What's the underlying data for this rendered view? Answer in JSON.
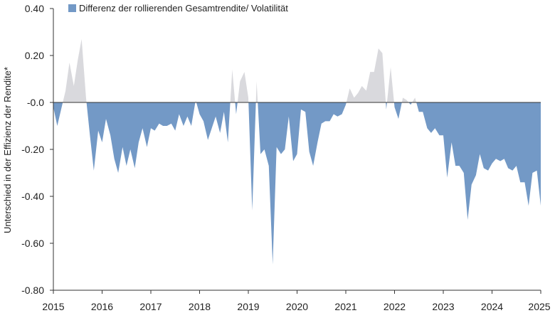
{
  "chart_data": {
    "type": "area",
    "title": "",
    "xlabel": "",
    "ylabel": "Unterschied in der Effizienz der Rendite*",
    "ylim": [
      -0.8,
      0.4
    ],
    "xlim": [
      2015.0,
      2025.0
    ],
    "y_ticks": [
      "0.40",
      "0.20",
      "-0.0",
      "-0.20",
      "-0.40",
      "-0.60",
      "-0.80"
    ],
    "y_tick_values": [
      0.4,
      0.2,
      0.0,
      -0.2,
      -0.4,
      -0.6,
      -0.8
    ],
    "x_ticks": [
      "2015",
      "2016",
      "2017",
      "2018",
      "2019",
      "2020",
      "2021",
      "2022",
      "2023",
      "2024",
      "2025"
    ],
    "x_tick_values": [
      2015,
      2016,
      2017,
      2018,
      2019,
      2020,
      2021,
      2022,
      2023,
      2024,
      2025
    ],
    "grid": false,
    "legend_position": "top-left",
    "colors": {
      "negative": "#7399c6",
      "positive": "#d9d9dd",
      "axis": "#333333"
    },
    "series": [
      {
        "name": "Differenz der rollierenden Gesamtrendite/ Volatilität",
        "x": [
          2015.0,
          2015.08,
          2015.17,
          2015.25,
          2015.33,
          2015.42,
          2015.5,
          2015.58,
          2015.67,
          2015.75,
          2015.83,
          2015.92,
          2016.0,
          2016.08,
          2016.17,
          2016.25,
          2016.33,
          2016.42,
          2016.5,
          2016.58,
          2016.67,
          2016.75,
          2016.83,
          2016.92,
          2017.0,
          2017.08,
          2017.17,
          2017.25,
          2017.33,
          2017.42,
          2017.5,
          2017.58,
          2017.67,
          2017.75,
          2017.83,
          2017.92,
          2018.0,
          2018.08,
          2018.17,
          2018.25,
          2018.33,
          2018.42,
          2018.5,
          2018.58,
          2018.67,
          2018.75,
          2018.83,
          2018.92,
          2019.0,
          2019.08,
          2019.17,
          2019.25,
          2019.33,
          2019.42,
          2019.5,
          2019.58,
          2019.67,
          2019.75,
          2019.83,
          2019.92,
          2020.0,
          2020.08,
          2020.17,
          2020.25,
          2020.33,
          2020.42,
          2020.5,
          2020.58,
          2020.67,
          2020.75,
          2020.83,
          2020.92,
          2021.0,
          2021.08,
          2021.17,
          2021.25,
          2021.33,
          2021.42,
          2021.5,
          2021.58,
          2021.67,
          2021.75,
          2021.83,
          2021.92,
          2022.0,
          2022.08,
          2022.17,
          2022.25,
          2022.33,
          2022.42,
          2022.5,
          2022.58,
          2022.67,
          2022.75,
          2022.83,
          2022.92,
          2023.0,
          2023.08,
          2023.17,
          2023.25,
          2023.33,
          2023.42,
          2023.5,
          2023.58,
          2023.67,
          2023.75,
          2023.83,
          2023.92,
          2024.0,
          2024.08,
          2024.17,
          2024.25,
          2024.33,
          2024.42,
          2024.5,
          2024.58,
          2024.67,
          2024.75,
          2024.83,
          2024.92,
          2025.0
        ],
        "values": [
          -0.02,
          -0.1,
          -0.02,
          0.05,
          0.17,
          0.07,
          0.18,
          0.27,
          0.02,
          -0.14,
          -0.29,
          -0.12,
          -0.17,
          -0.07,
          -0.14,
          -0.24,
          -0.3,
          -0.19,
          -0.27,
          -0.2,
          -0.28,
          -0.17,
          -0.11,
          -0.19,
          -0.11,
          -0.12,
          -0.09,
          -0.1,
          -0.1,
          -0.09,
          -0.12,
          -0.05,
          -0.1,
          -0.06,
          -0.1,
          0.01,
          -0.05,
          -0.08,
          -0.16,
          -0.11,
          -0.06,
          -0.13,
          -0.04,
          -0.17,
          0.14,
          -0.05,
          0.09,
          0.13,
          0.02,
          -0.46,
          0.09,
          -0.22,
          -0.2,
          -0.27,
          -0.69,
          -0.19,
          -0.22,
          -0.2,
          -0.06,
          -0.25,
          -0.22,
          -0.03,
          -0.04,
          -0.21,
          -0.27,
          -0.17,
          -0.09,
          -0.08,
          -0.08,
          -0.05,
          -0.06,
          -0.05,
          -0.01,
          0.06,
          0.02,
          0.04,
          0.07,
          0.05,
          0.13,
          0.13,
          0.23,
          0.21,
          -0.03,
          0.15,
          -0.02,
          -0.07,
          0.02,
          0.01,
          -0.01,
          0.02,
          -0.04,
          -0.04,
          -0.11,
          -0.13,
          -0.11,
          -0.14,
          -0.14,
          -0.32,
          -0.17,
          -0.27,
          -0.27,
          -0.3,
          -0.5,
          -0.35,
          -0.31,
          -0.22,
          -0.28,
          -0.29,
          -0.26,
          -0.24,
          -0.25,
          -0.24,
          -0.28,
          -0.29,
          -0.27,
          -0.34,
          -0.34,
          -0.44,
          -0.3,
          -0.29,
          -0.44
        ]
      }
    ]
  }
}
